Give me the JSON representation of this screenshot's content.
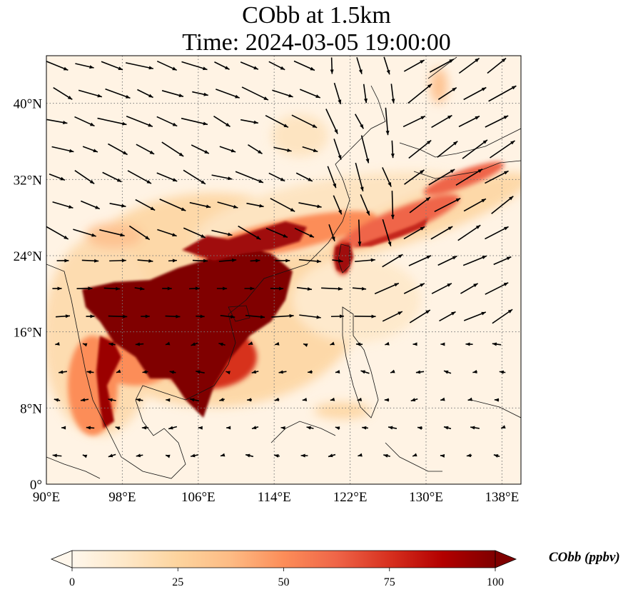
{
  "title": {
    "line1": "CObb at 1.5km",
    "line2": "Time: 2024-03-05 19:00:00"
  },
  "map": {
    "projection": "PlateCarree",
    "extent": {
      "lon": [
        90,
        140
      ],
      "lat": [
        0,
        45
      ]
    },
    "gridlines": "dotted grey",
    "x_ticks": [
      "90°E",
      "98°E",
      "106°E",
      "114°E",
      "122°E",
      "130°E",
      "138°E"
    ],
    "x_tick_values": [
      90,
      98,
      106,
      114,
      122,
      130,
      138
    ],
    "y_ticks": [
      "0°",
      "8°N",
      "16°N",
      "24°N",
      "32°N",
      "40°N"
    ],
    "y_tick_values": [
      0,
      8,
      16,
      24,
      32,
      40
    ],
    "field": "CObb concentration (ppbv), OrRd colormap; highest values (>100) over Indochina, southern China and a plume extending east through Taiwan to southern Japan",
    "vectors": "black wind arrows, mostly westerly/northwesterly in the north, easterly/northeasterly over the South China Sea"
  },
  "colorbar": {
    "label": "CObb (ppbv)",
    "ticks": [
      "0",
      "25",
      "50",
      "75",
      "100"
    ],
    "tick_values": [
      0,
      25,
      50,
      75,
      100
    ],
    "range": [
      0,
      100
    ],
    "extend": "both",
    "colors": [
      "#fff7ec",
      "#fee8c8",
      "#fdd49e",
      "#fdbb84",
      "#fc8d59",
      "#ef6548",
      "#d7301f",
      "#b30000",
      "#7f0000"
    ]
  }
}
